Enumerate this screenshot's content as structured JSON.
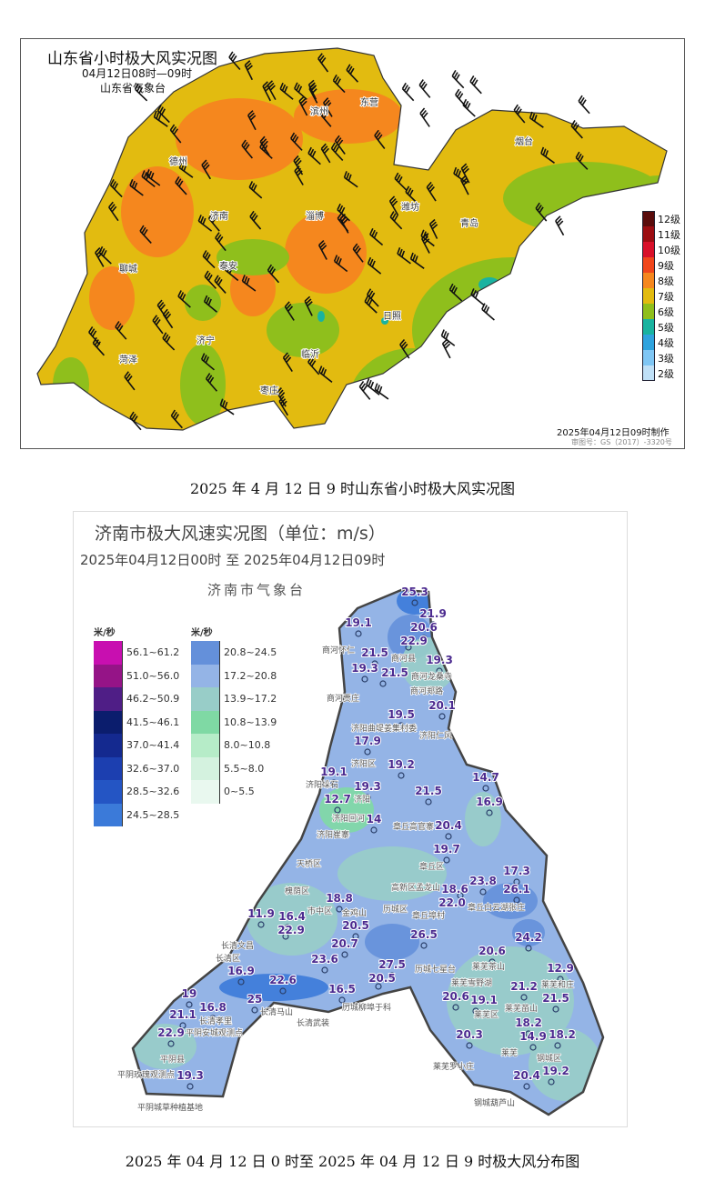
{
  "top_map": {
    "title": "山东省小时极大风实况图",
    "subtitle": "04月12日08时—09时",
    "org": "山东省气象台",
    "made": "2025年04月12日09时制作",
    "review_no": "审图号：GS（2017）-3320号",
    "cities": [
      "东营",
      "滨州",
      "德州",
      "聊城",
      "济南",
      "淄博",
      "潍坊",
      "烟台",
      "青岛",
      "泰安",
      "日照",
      "济宁",
      "临沂",
      "菏泽",
      "枣庄"
    ],
    "legend": [
      {
        "label": "12级",
        "color": "#5a0c0c"
      },
      {
        "label": "11级",
        "color": "#9c0d12"
      },
      {
        "label": "10级",
        "color": "#d8102a"
      },
      {
        "label": "9级",
        "color": "#f0461c"
      },
      {
        "label": "8级",
        "color": "#f5871e"
      },
      {
        "label": "7级",
        "color": "#e2bb10"
      },
      {
        "label": "6级",
        "color": "#8fbf1c"
      },
      {
        "label": "5级",
        "color": "#19b3a0"
      },
      {
        "label": "4级",
        "color": "#2ea3de"
      },
      {
        "label": "3级",
        "color": "#7fc6f4"
      },
      {
        "label": "2级",
        "color": "#bfe0f7"
      }
    ]
  },
  "caption1": "2025 年 4 月 12 日 9 时山东省小时极大风实况图",
  "bottom_map": {
    "title": "济南市极大风速实况图（单位：m/s）",
    "range": "2025年04月12日00时  至  2025年04月12日09时",
    "org": "济南市气象台",
    "legend_unit": "米/秒",
    "legend_left": [
      {
        "label": "56.1~61.2",
        "color": "#c80fb0"
      },
      {
        "label": "51.0~56.0",
        "color": "#951487"
      },
      {
        "label": "46.2~50.9",
        "color": "#4f1e86"
      },
      {
        "label": "41.5~46.1",
        "color": "#0b1d6d"
      },
      {
        "label": "37.0~41.4",
        "color": "#14298f"
      },
      {
        "label": "32.6~37.0",
        "color": "#1c3fb0"
      },
      {
        "label": "28.5~32.6",
        "color": "#2455c4"
      },
      {
        "label": "24.5~28.5",
        "color": "#3b7ad9"
      }
    ],
    "legend_right": [
      {
        "label": "20.8~24.5",
        "color": "#6490da"
      },
      {
        "label": "17.2~20.8",
        "color": "#94b4e6"
      },
      {
        "label": "13.9~17.2",
        "color": "#98cdc8"
      },
      {
        "label": "10.8~13.9",
        "color": "#7fd9a4"
      },
      {
        "label": "8.0~10.8",
        "color": "#b6ecc8"
      },
      {
        "label": "5.5~8.0",
        "color": "#d4f2df"
      },
      {
        "label": "0~5.5",
        "color": "#e9f8ef"
      }
    ],
    "stations": [
      "25.3",
      "21.9",
      "20.6",
      "22.9",
      "19.1",
      "21.5",
      "19.3",
      "19.3",
      "21.5",
      "19.5",
      "20.1",
      "17.9",
      "19.2",
      "19.1",
      "19.3",
      "21.5",
      "12.7",
      "14.7",
      "16.9",
      "14",
      "20.4",
      "19.7",
      "18.8",
      "17.3",
      "23.8",
      "18.6",
      "26.1",
      "22.0",
      "24.2",
      "11.9",
      "16.4",
      "22.9",
      "20.5",
      "26.5",
      "20.7",
      "23.6",
      "27.5",
      "20.5",
      "16.5",
      "16.9",
      "22.6",
      "19",
      "25",
      "16.8",
      "21.1",
      "22.9",
      "19.3",
      "20.6",
      "12.9",
      "21.2",
      "20.6",
      "19.1",
      "21.5",
      "18.2",
      "20.3",
      "14.9",
      "18.2",
      "20.4",
      "19.2"
    ],
    "places": [
      "商河怀仁",
      "商河龙桑寺",
      "商河县",
      "商河郑路",
      "商河贾庄",
      "济阳仁风",
      "济阳曲堤姜集村委",
      "济阳区",
      "济阳垛石",
      "济阳",
      "济阳回河",
      "章丘高官寨",
      "济阳崔寨",
      "章丘区",
      "高新区孟龙山",
      "天桥区",
      "槐荫区",
      "市中区",
      "历城区",
      "金鸡山",
      "章丘埠村",
      "章丘白云湖张庄",
      "历城七星台",
      "长清文昌",
      "长清区",
      "长清马山",
      "长清孝里",
      "平阴县",
      "平阴安城观测点",
      "平阴玫瑰观测点",
      "平阴城草种植基地",
      "长清武装",
      "历城柳埠于科",
      "莱芜茶山",
      "莱芜雪野湖",
      "莱芜区",
      "莱芜和庄",
      "莱芜苗山",
      "莱芜",
      "莱芜罗小庄",
      "钢城区",
      "钢城葫芦山"
    ]
  },
  "caption2": "2025 年 04 月 12 日 0 时至 2025 年 04 月 12 日 9 时极大风分布图"
}
